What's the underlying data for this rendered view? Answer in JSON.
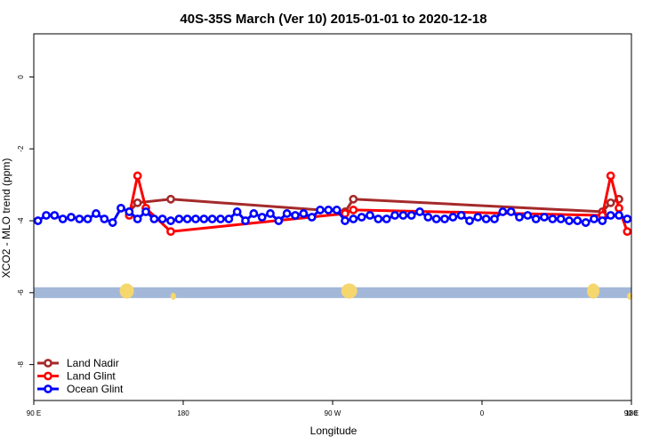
{
  "chart_data": {
    "type": "line",
    "title": "40S-35S March (Ver 10)   2015-01-01 to 2020-12-18",
    "xlabel": "Longitude",
    "ylabel": "XCO2 - MLO trend (ppm)",
    "xlim": [
      90,
      450
    ],
    "ylim": [
      -9,
      1.2
    ],
    "x_ticks": [
      {
        "value": 90,
        "label": "90 E"
      },
      {
        "value": 180,
        "label": "180"
      },
      {
        "value": 270,
        "label": "90 W"
      },
      {
        "value": 360,
        "label": "0"
      },
      {
        "value": 450,
        "label": "90 E"
      },
      {
        "value": 540,
        "label": "180"
      }
    ],
    "y_ticks": [
      {
        "value": 0,
        "label": "0"
      },
      {
        "value": -2,
        "label": "-2"
      },
      {
        "value": -4,
        "label": "-4"
      },
      {
        "value": -6,
        "label": "-6"
      },
      {
        "value": -8,
        "label": "-8"
      }
    ],
    "grid": false,
    "legend_position": "bottom-left",
    "landmass_band": {
      "y_range": [
        -6.15,
        -5.85
      ],
      "ocean_color": "#a3b8d9",
      "land_color": "#f5d76e"
    },
    "series": [
      {
        "name": "Land Nadir",
        "color": "#a52a2a",
        "x": [
          147.5,
          152.5,
          172.5,
          277.5,
          282.5,
          432.5,
          437.5,
          442.5
        ],
        "y": [
          -3.75,
          -3.5,
          -3.4,
          -3.75,
          -3.4,
          -3.75,
          -3.5,
          -3.4
        ]
      },
      {
        "name": "Land Glint",
        "color": "#ff0000",
        "x": [
          147.5,
          152.5,
          157.5,
          172.5,
          277.5,
          282.5,
          432.5,
          437.5,
          442.5,
          447.5
        ],
        "y": [
          -3.85,
          -2.75,
          -3.65,
          -4.3,
          -3.8,
          -3.7,
          -3.85,
          -2.75,
          -3.65,
          -4.3
        ]
      },
      {
        "name": "Ocean Glint",
        "color": "#0000ff",
        "x": [
          92.5,
          97.5,
          102.5,
          107.5,
          112.5,
          117.5,
          122.5,
          127.5,
          132.5,
          137.5,
          142.5,
          147.5,
          152.5,
          157.5,
          162.5,
          167.5,
          172.5,
          177.5,
          182.5,
          187.5,
          192.5,
          197.5,
          202.5,
          207.5,
          212.5,
          217.5,
          222.5,
          227.5,
          232.5,
          237.5,
          242.5,
          247.5,
          252.5,
          257.5,
          262.5,
          267.5,
          272.5,
          277.5,
          282.5,
          287.5,
          292.5,
          297.5,
          302.5,
          307.5,
          312.5,
          317.5,
          322.5,
          327.5,
          332.5,
          337.5,
          342.5,
          347.5,
          352.5,
          357.5,
          362.5,
          367.5,
          372.5,
          377.5,
          382.5,
          387.5,
          392.5,
          397.5,
          402.5,
          407.5,
          412.5,
          417.5,
          422.5,
          427.5,
          432.5,
          437.5,
          442.5,
          447.5
        ],
        "y": [
          -4.0,
          -3.85,
          -3.85,
          -3.95,
          -3.9,
          -3.95,
          -3.95,
          -3.8,
          -3.95,
          -4.05,
          -3.65,
          -3.75,
          -3.95,
          -3.75,
          -3.95,
          -3.95,
          -4.0,
          -3.95,
          -3.95,
          -3.95,
          -3.95,
          -3.95,
          -3.95,
          -3.95,
          -3.75,
          -4.0,
          -3.8,
          -3.9,
          -3.8,
          -4.0,
          -3.8,
          -3.85,
          -3.8,
          -3.9,
          -3.7,
          -3.7,
          -3.7,
          -4.0,
          -3.95,
          -3.9,
          -3.85,
          -3.95,
          -3.95,
          -3.85,
          -3.85,
          -3.85,
          -3.75,
          -3.9,
          -3.95,
          -3.95,
          -3.9,
          -3.85,
          -4.0,
          -3.9,
          -3.95,
          -3.95,
          -3.75,
          -3.75,
          -3.9,
          -3.85,
          -3.95,
          -3.9,
          -3.95,
          -3.95,
          -4.0,
          -4.0,
          -4.05,
          -3.95,
          -4.0,
          -3.85,
          -3.85,
          -3.95
        ]
      }
    ]
  }
}
